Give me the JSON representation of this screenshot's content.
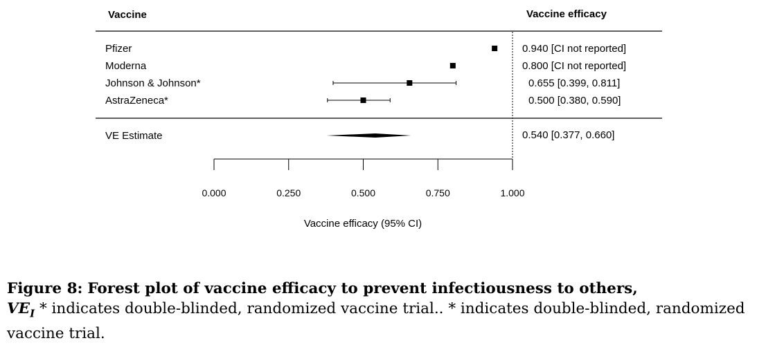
{
  "chart_data": {
    "type": "forest",
    "columns": {
      "left_header": "Vaccine",
      "right_header": "Vaccine efficacy"
    },
    "studies": [
      {
        "name": "Pfizer",
        "estimate": 0.94,
        "lower": null,
        "upper": null,
        "label": "0.940 [CI not reported]"
      },
      {
        "name": "Moderna",
        "estimate": 0.8,
        "lower": null,
        "upper": null,
        "label": "0.800 [CI not reported]"
      },
      {
        "name": "Johnson & Johnson*",
        "estimate": 0.655,
        "lower": 0.399,
        "upper": 0.811,
        "label": "0.655 [0.399, 0.811]"
      },
      {
        "name": "AstraZeneca*",
        "estimate": 0.5,
        "lower": 0.38,
        "upper": 0.59,
        "label": "0.500 [0.380, 0.590]"
      }
    ],
    "summary": {
      "name": "VE Estimate",
      "estimate": 0.54,
      "lower": 0.377,
      "upper": 0.66,
      "label": "0.540 [0.377, 0.660]"
    },
    "reference_line": 1.0,
    "xlim": [
      0,
      1
    ],
    "xticks": [
      0,
      0.25,
      0.5,
      0.75,
      1.0
    ],
    "xtick_labels": [
      "0.000",
      "0.250",
      "0.500",
      "0.750",
      "1.000"
    ],
    "xlabel": "Vaccine efficacy (95% CI)"
  },
  "caption": {
    "figure_label": "Figure 8:",
    "title": "Forest plot of vaccine efficacy to prevent infectiousness to others,",
    "symbol_main": "VE",
    "symbol_sub": "I",
    "note": "* indicates double-blinded, randomized vaccine trial.. * indicates double-blinded, randomized vaccine trial."
  }
}
